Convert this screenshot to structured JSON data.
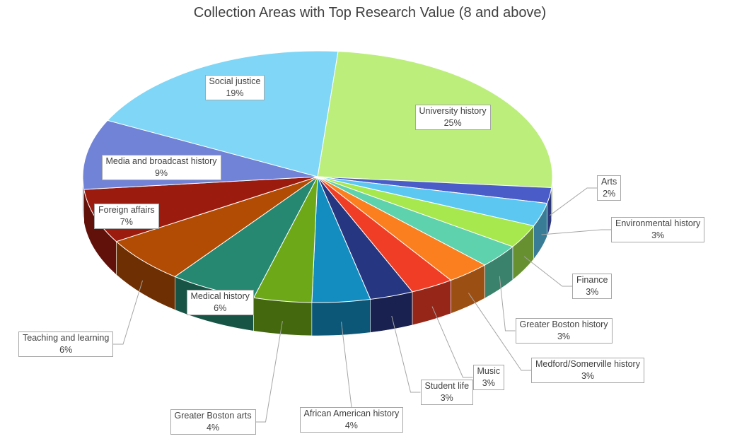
{
  "chart_data": {
    "type": "pie",
    "title": "Collection Areas with Top Research Value (8 and above)",
    "slices": [
      {
        "label": "University history",
        "value": 25,
        "display": "25%",
        "color": "#bcee7c"
      },
      {
        "label": "Arts",
        "value": 2,
        "display": "2%",
        "color": "#4a5cc8"
      },
      {
        "label": "Environmental history",
        "value": 3,
        "display": "3%",
        "color": "#5cc8f2"
      },
      {
        "label": "Finance",
        "value": 3,
        "display": "3%",
        "color": "#a6e84e"
      },
      {
        "label": "Greater Boston history",
        "value": 3,
        "display": "3%",
        "color": "#5ed1ad"
      },
      {
        "label": "Medford/Somerville history",
        "value": 3,
        "display": "3%",
        "color": "#fb7f1f"
      },
      {
        "label": "Music",
        "value": 3,
        "display": "3%",
        "color": "#f03e26"
      },
      {
        "label": "Student life",
        "value": 3,
        "display": "3%",
        "color": "#263680"
      },
      {
        "label": "African American history",
        "value": 4,
        "display": "4%",
        "color": "#138dc0"
      },
      {
        "label": "Greater Boston arts",
        "value": 4,
        "display": "4%",
        "color": "#6ca817"
      },
      {
        "label": "Medical history",
        "value": 6,
        "display": "6%",
        "color": "#268870"
      },
      {
        "label": "Teaching and learning",
        "value": 6,
        "display": "6%",
        "color": "#b24c05"
      },
      {
        "label": "Foreign affairs",
        "value": 7,
        "display": "7%",
        "color": "#9c1b0f"
      },
      {
        "label": "Media and broadcast history",
        "value": 9,
        "display": "9%",
        "color": "#7183d7"
      },
      {
        "label": "Social justice",
        "value": 19,
        "display": "19%",
        "color": "#7fd6f6"
      }
    ]
  }
}
